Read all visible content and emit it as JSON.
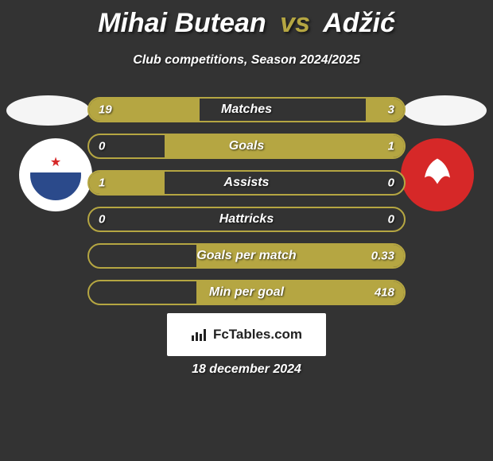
{
  "title": {
    "player1": "Mihai Butean",
    "vs": "vs",
    "player2": "Adžić"
  },
  "subtitle": "Club competitions, Season 2024/2025",
  "crests": {
    "left": {
      "primary_color": "#ffffff",
      "secondary_color": "#2b4a8b",
      "accent_color": "#d62828"
    },
    "right": {
      "primary_color": "#d62828",
      "secondary_color": "#ffffff"
    }
  },
  "bars": [
    {
      "label": "Matches",
      "left_val": "19",
      "right_val": "3",
      "left_pct": 35,
      "right_pct": 12
    },
    {
      "label": "Goals",
      "left_val": "0",
      "right_val": "1",
      "left_pct": 0,
      "right_pct": 76
    },
    {
      "label": "Assists",
      "left_val": "1",
      "right_val": "0",
      "left_pct": 24,
      "right_pct": 0
    },
    {
      "label": "Hattricks",
      "left_val": "0",
      "right_val": "0",
      "left_pct": 0,
      "right_pct": 0
    },
    {
      "label": "Goals per match",
      "left_val": "",
      "right_val": "0.33",
      "left_pct": 0,
      "right_pct": 66
    },
    {
      "label": "Min per goal",
      "left_val": "",
      "right_val": "418",
      "left_pct": 0,
      "right_pct": 66
    }
  ],
  "colors": {
    "background": "#333333",
    "bar_outline": "#b5a642",
    "bar_fill": "#b5a642",
    "text": "#ffffff"
  },
  "watermark": "FcTables.com",
  "date": "18 december 2024"
}
